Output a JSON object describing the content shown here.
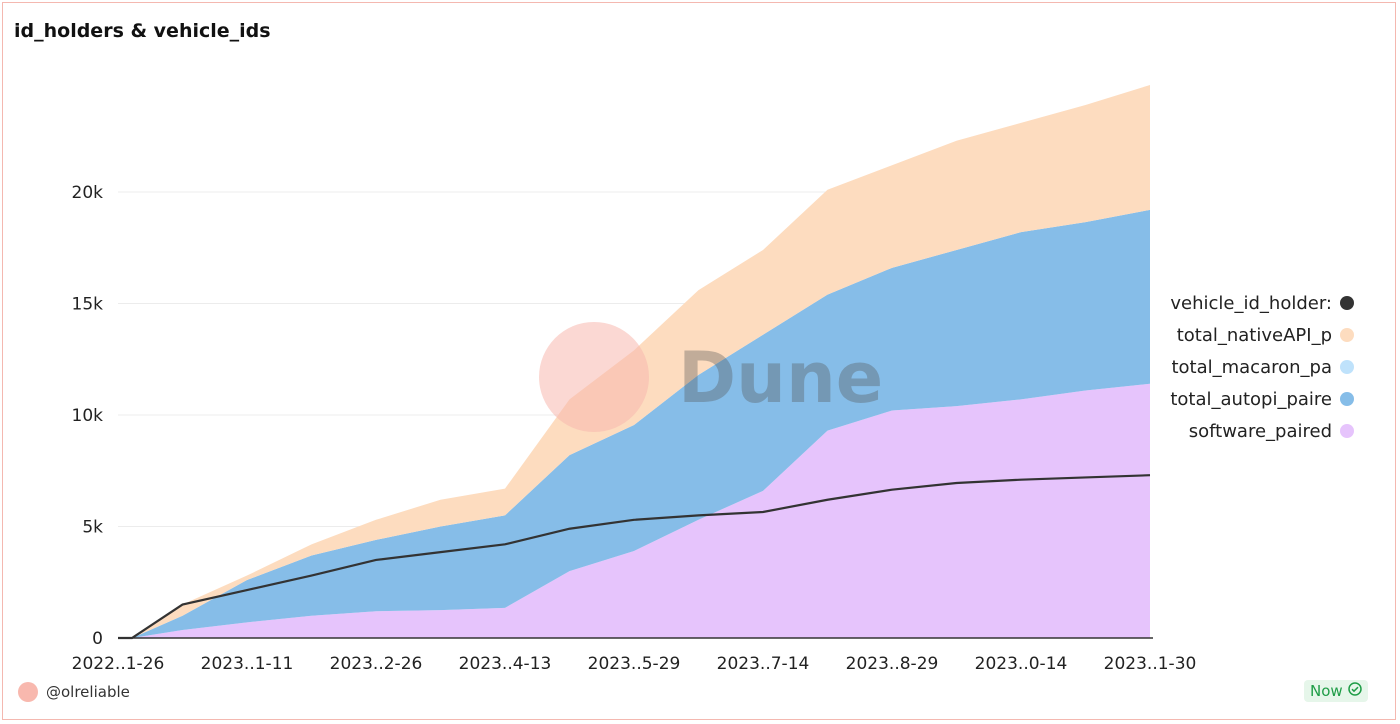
{
  "title": "id_holders & vehicle_ids",
  "watermark": "Dune",
  "author": "@olreliable",
  "status": "Now",
  "chart_data": {
    "type": "area",
    "stacked": true,
    "title": "id_holders & vehicle_ids",
    "xlabel": "",
    "ylabel": "",
    "ylim": [
      0,
      25000
    ],
    "yticks": [
      0,
      5000,
      10000,
      15000,
      20000
    ],
    "ytick_labels": [
      "0",
      "5k",
      "10k",
      "15k",
      "20k"
    ],
    "xlim": [
      0,
      368
    ],
    "xticks": [
      0,
      46,
      92,
      138,
      184,
      230,
      276,
      322,
      368
    ],
    "xtick_labels": [
      "2022..1-26",
      "2023..1-11",
      "2023..2-26",
      "2023..4-13",
      "2023..5-29",
      "2023..7-14",
      "2023..8-29",
      "2023..0-14",
      "2023..1-30"
    ],
    "x": [
      0,
      5,
      23,
      46,
      69,
      92,
      115,
      138,
      161,
      184,
      207,
      230,
      253,
      276,
      299,
      322,
      345,
      368
    ],
    "series": [
      {
        "name": "software_paired",
        "color": "#e6c4fc",
        "kind": "area",
        "values": [
          0,
          0,
          360,
          700,
          1000,
          1200,
          1250,
          1350,
          3000,
          3900,
          5300,
          6600,
          9300,
          10200,
          10400,
          10700,
          11100,
          11400
        ]
      },
      {
        "name": "total_autopi_paired",
        "color": "#86bde8",
        "kind": "area",
        "values": [
          0,
          0,
          640,
          1900,
          2700,
          3200,
          3750,
          4150,
          5200,
          5650,
          6500,
          7000,
          6100,
          6400,
          7000,
          7500,
          7550,
          7800
        ]
      },
      {
        "name": "total_macaron_paired",
        "color": "#bfe2fb",
        "kind": "area",
        "values": [
          0,
          0,
          0,
          0,
          0,
          0,
          0,
          0,
          0,
          0,
          0,
          0,
          0,
          0,
          0,
          0,
          0,
          0
        ]
      },
      {
        "name": "total_nativeAPI_paired",
        "color": "#fddcbf",
        "kind": "area",
        "values": [
          0,
          0,
          500,
          200,
          500,
          900,
          1200,
          1200,
          2500,
          3350,
          3800,
          3800,
          4700,
          4600,
          4900,
          4900,
          5250,
          5600
        ]
      },
      {
        "name": "vehicle_id_holders",
        "color": "#333333",
        "kind": "line",
        "values": [
          0,
          0,
          1500,
          2150,
          2800,
          3500,
          3850,
          4200,
          4900,
          5300,
          5500,
          5650,
          6200,
          6650,
          6950,
          7100,
          7200,
          7300
        ]
      }
    ],
    "legend": {
      "placement": "right",
      "entries": [
        "vehicle_id_holders",
        "total_nativeAPI_paired",
        "total_macaron_paired",
        "total_autopi_paired",
        "software_paired"
      ],
      "labels": [
        "vehicle_id_holder:",
        "total_nativeAPI_p",
        "total_macaron_pa",
        "total_autopi_paire",
        "software_paired"
      ],
      "colors": [
        "#333333",
        "#fddcbf",
        "#bfe2fb",
        "#86bde8",
        "#e6c4fc"
      ]
    },
    "grid": true
  }
}
